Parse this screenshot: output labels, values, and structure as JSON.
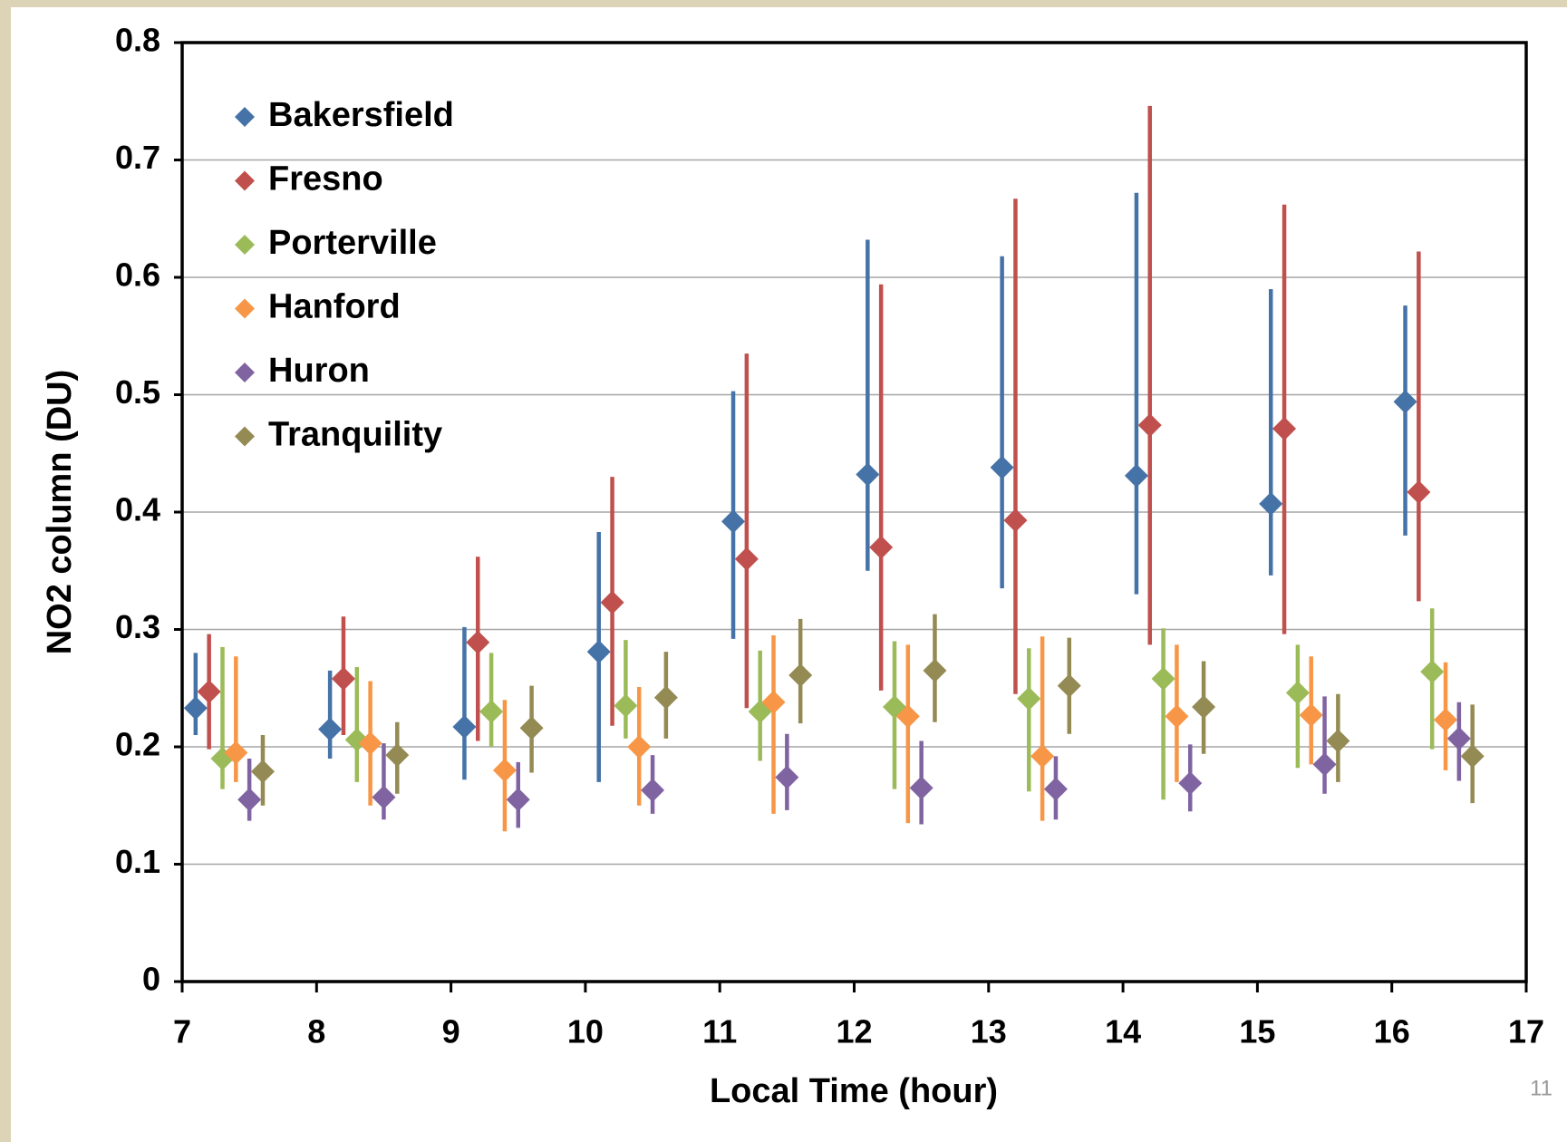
{
  "chart_data": {
    "type": "scatter",
    "x_label": "Local Time (hour)",
    "y_label": "NO2 column (DU)",
    "xlim": [
      7,
      17
    ],
    "xticks": [
      7,
      8,
      9,
      10,
      11,
      12,
      13,
      14,
      15,
      16,
      17
    ],
    "ylim": [
      0,
      0.8
    ],
    "yticks": [
      0,
      0.1,
      0.2,
      0.3,
      0.4,
      0.5,
      0.6,
      0.7,
      0.8
    ],
    "grid": true,
    "legend": "upper left",
    "series": [
      {
        "name": "Bakersfield",
        "color": "#4572a7",
        "x": [
          7.1,
          8.1,
          9.1,
          10.1,
          11.1,
          12.1,
          13.1,
          14.1,
          15.1,
          16.1
        ],
        "values": [
          0.233,
          0.215,
          0.217,
          0.281,
          0.392,
          0.432,
          0.438,
          0.431,
          0.407,
          0.494
        ],
        "low": [
          0.21,
          0.19,
          0.172,
          0.17,
          0.292,
          0.35,
          0.335,
          0.33,
          0.346,
          0.38
        ],
        "high": [
          0.28,
          0.265,
          0.302,
          0.383,
          0.503,
          0.632,
          0.618,
          0.672,
          0.59,
          0.576
        ]
      },
      {
        "name": "Fresno",
        "color": "#c0504d",
        "x": [
          7.2,
          8.2,
          9.2,
          10.2,
          11.2,
          12.2,
          13.2,
          14.2,
          15.2,
          16.2
        ],
        "values": [
          0.247,
          0.258,
          0.289,
          0.323,
          0.36,
          0.37,
          0.393,
          0.474,
          0.471,
          0.417
        ],
        "low": [
          0.198,
          0.21,
          0.205,
          0.218,
          0.233,
          0.248,
          0.245,
          0.287,
          0.296,
          0.324
        ],
        "high": [
          0.296,
          0.311,
          0.362,
          0.43,
          0.535,
          0.594,
          0.667,
          0.746,
          0.662,
          0.622
        ]
      },
      {
        "name": "Porterville",
        "color": "#9bbb59",
        "x": [
          7.3,
          8.3,
          9.3,
          10.3,
          11.3,
          12.3,
          13.3,
          14.3,
          15.3,
          16.3
        ],
        "values": [
          0.19,
          0.206,
          0.23,
          0.235,
          0.23,
          0.234,
          0.241,
          0.258,
          0.246,
          0.264
        ],
        "low": [
          0.164,
          0.17,
          0.2,
          0.207,
          0.188,
          0.164,
          0.162,
          0.155,
          0.182,
          0.198
        ],
        "high": [
          0.285,
          0.268,
          0.28,
          0.291,
          0.282,
          0.29,
          0.284,
          0.301,
          0.287,
          0.318
        ]
      },
      {
        "name": "Hanford",
        "color": "#f79646",
        "x": [
          7.4,
          8.4,
          9.4,
          10.4,
          11.4,
          12.4,
          13.4,
          14.4,
          15.4,
          16.4
        ],
        "values": [
          0.195,
          0.203,
          0.18,
          0.2,
          0.238,
          0.226,
          0.192,
          0.226,
          0.227,
          0.223
        ],
        "low": [
          0.17,
          0.15,
          0.128,
          0.15,
          0.143,
          0.135,
          0.137,
          0.17,
          0.185,
          0.18
        ],
        "high": [
          0.277,
          0.256,
          0.24,
          0.251,
          0.295,
          0.287,
          0.294,
          0.287,
          0.277,
          0.272
        ]
      },
      {
        "name": "Huron",
        "color": "#8064a2",
        "x": [
          7.5,
          8.5,
          9.5,
          10.5,
          11.5,
          12.5,
          13.5,
          14.5,
          15.5,
          16.5
        ],
        "values": [
          0.155,
          0.157,
          0.155,
          0.163,
          0.174,
          0.165,
          0.164,
          0.169,
          0.185,
          0.207
        ],
        "low": [
          0.137,
          0.138,
          0.131,
          0.143,
          0.146,
          0.134,
          0.138,
          0.145,
          0.16,
          0.171
        ],
        "high": [
          0.19,
          0.203,
          0.187,
          0.193,
          0.211,
          0.205,
          0.192,
          0.202,
          0.243,
          0.238
        ]
      },
      {
        "name": "Tranquility",
        "color": "#948a54",
        "x": [
          7.6,
          8.6,
          9.6,
          10.6,
          11.6,
          12.6,
          13.6,
          14.6,
          15.6,
          16.6
        ],
        "values": [
          0.179,
          0.193,
          0.216,
          0.242,
          0.261,
          0.265,
          0.252,
          0.234,
          0.205,
          0.192
        ],
        "low": [
          0.15,
          0.16,
          0.178,
          0.207,
          0.22,
          0.221,
          0.211,
          0.194,
          0.17,
          0.152
        ],
        "high": [
          0.21,
          0.221,
          0.252,
          0.281,
          0.309,
          0.313,
          0.293,
          0.273,
          0.245,
          0.236
        ]
      }
    ]
  },
  "page_number": "11"
}
